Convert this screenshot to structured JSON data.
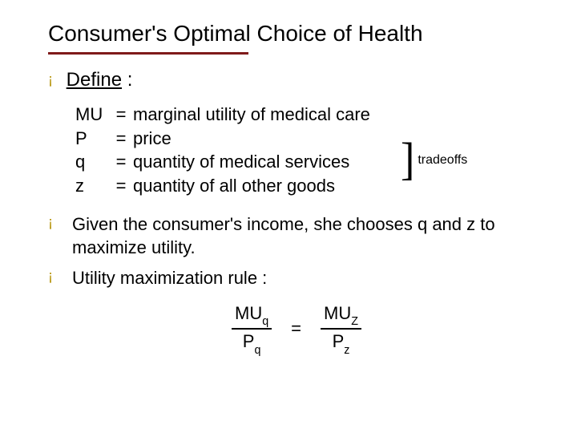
{
  "colors": {
    "rule": "#7f1a1a",
    "bullet": "#b38f00",
    "text": "#000000",
    "background": "#ffffff"
  },
  "title": "Consumer's Optimal Choice of Health",
  "section_label": "Define",
  "section_label_suffix": " :",
  "definitions": [
    {
      "sym": "MU",
      "eq": "=",
      "desc": "marginal utility of medical care"
    },
    {
      "sym": "P",
      "eq": "=",
      "desc": "price"
    },
    {
      "sym": "q",
      "eq": "=",
      "desc": "quantity of medical services"
    },
    {
      "sym": "z",
      "eq": "=",
      "desc": "quantity of all other goods"
    }
  ],
  "bracket_label": "tradeoffs",
  "bullets": [
    "Given the consumer's income, she chooses q and z to maximize utility.",
    "Utility maximization rule :"
  ],
  "equation": {
    "left_num_base": "MU",
    "left_num_sub": "q",
    "left_den_base": "P",
    "left_den_sub": "q",
    "sign": "=",
    "right_num_base": "MU",
    "right_num_sub": "Z",
    "right_den_base": "P",
    "right_den_sub": "z"
  }
}
